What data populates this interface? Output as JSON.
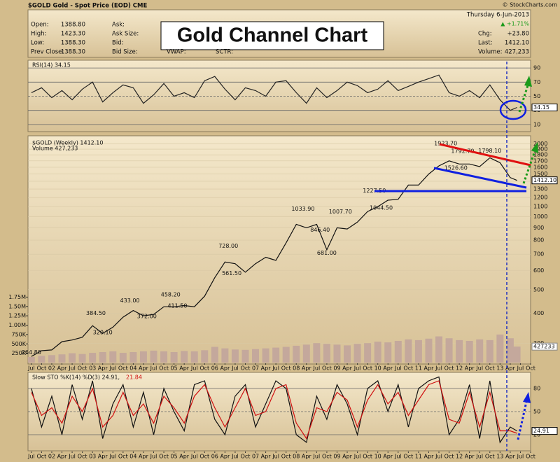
{
  "header": {
    "symbol_line": "$GOLD Gold - Spot Price (EOD) CME",
    "credit": "© StockCharts.com",
    "date": "Thursday 6-Jun-2013",
    "change_pct": "▲ +1.71%",
    "left_fields": [
      {
        "label": "Open:",
        "value": "1388.80"
      },
      {
        "label": "High:",
        "value": "1423.30"
      },
      {
        "label": "Low:",
        "value": "1388.30"
      },
      {
        "label": "Prev Close:",
        "value": "1388.30"
      }
    ],
    "mid_fields": [
      "Ask:",
      "Ask Size:",
      "Bid:",
      "Bid Size:"
    ],
    "extra_fields": [
      "VWAP:",
      "SCTR:"
    ],
    "right_fields": [
      {
        "label": "Chg:",
        "value": "+23.80"
      },
      {
        "label": "Last:",
        "value": "1412.10"
      },
      {
        "label": "Volume:",
        "value": "427,233"
      }
    ],
    "banner": "Gold Channel Chart"
  },
  "chart_data": [
    {
      "type": "line",
      "title": "RSI(14) 34.15",
      "ylim": [
        0,
        100
      ],
      "yticks": [
        10,
        30,
        50,
        70,
        90
      ],
      "last_value_label": "34.15",
      "series": [
        {
          "color": "#222222",
          "values": [
            55,
            62,
            48,
            58,
            45,
            60,
            70,
            42,
            55,
            66,
            62,
            40,
            52,
            68,
            50,
            55,
            48,
            72,
            78,
            60,
            45,
            62,
            58,
            50,
            70,
            72,
            55,
            40,
            62,
            48,
            58,
            70,
            65,
            55,
            60,
            72,
            58,
            64,
            70,
            75,
            80,
            55,
            50,
            58,
            48,
            66,
            45,
            30,
            34.15
          ]
        }
      ]
    },
    {
      "type": "line",
      "title": "$GOLD (Weekly) 1412.10",
      "subtitle": "Volume 427,233",
      "log_scale": true,
      "x": [
        "2001-07",
        "2001-10",
        "2002-01",
        "2002-04",
        "2002-07",
        "2002-10",
        "2003-01",
        "2003-04",
        "2003-07",
        "2003-10",
        "2004-01",
        "2004-04",
        "2004-07",
        "2004-10",
        "2005-01",
        "2005-04",
        "2005-07",
        "2005-10",
        "2006-01",
        "2006-04",
        "2006-07",
        "2006-10",
        "2007-01",
        "2007-04",
        "2007-07",
        "2007-10",
        "2008-01",
        "2008-04",
        "2008-07",
        "2008-10",
        "2009-01",
        "2009-04",
        "2009-07",
        "2009-10",
        "2010-01",
        "2010-04",
        "2010-07",
        "2010-10",
        "2011-01",
        "2011-04",
        "2011-07",
        "2011-10",
        "2012-01",
        "2012-04",
        "2012-07",
        "2012-10",
        "2013-01",
        "2013-04",
        "2013-06"
      ],
      "xlim": [
        "2001-06",
        "2013-10"
      ],
      "xticks": [
        {
          "value": "2001-07",
          "label": "Jul"
        },
        {
          "value": "2001-10",
          "label": "Oct"
        },
        {
          "value": "2002-01",
          "label": "02"
        },
        {
          "value": "2002-04",
          "label": "Apr"
        },
        {
          "value": "2002-07",
          "label": "Jul"
        },
        {
          "value": "2002-10",
          "label": "Oct"
        },
        {
          "value": "2003-01",
          "label": "03"
        },
        {
          "value": "2003-04",
          "label": "Apr"
        },
        {
          "value": "2003-07",
          "label": "Jul"
        },
        {
          "value": "2003-10",
          "label": "Oct"
        },
        {
          "value": "2004-01",
          "label": "04"
        },
        {
          "value": "2004-04",
          "label": "Apr"
        },
        {
          "value": "2004-07",
          "label": "Jul"
        },
        {
          "value": "2004-10",
          "label": "Oct"
        },
        {
          "value": "2005-01",
          "label": "05"
        },
        {
          "value": "2005-04",
          "label": "Apr"
        },
        {
          "value": "2005-07",
          "label": "Jul"
        },
        {
          "value": "2005-10",
          "label": "Oct"
        },
        {
          "value": "2006-01",
          "label": "06"
        },
        {
          "value": "2006-04",
          "label": "Apr"
        },
        {
          "value": "2006-07",
          "label": "Jul"
        },
        {
          "value": "2006-10",
          "label": "Oct"
        },
        {
          "value": "2007-01",
          "label": "07"
        },
        {
          "value": "2007-04",
          "label": "Apr"
        },
        {
          "value": "2007-07",
          "label": "Jul"
        },
        {
          "value": "2007-10",
          "label": "Oct"
        },
        {
          "value": "2008-01",
          "label": "08"
        },
        {
          "value": "2008-04",
          "label": "Apr"
        },
        {
          "value": "2008-07",
          "label": "Jul"
        },
        {
          "value": "2008-10",
          "label": "Oct"
        },
        {
          "value": "2009-01",
          "label": "09"
        },
        {
          "value": "2009-04",
          "label": "Apr"
        },
        {
          "value": "2009-07",
          "label": "Jul"
        },
        {
          "value": "2009-10",
          "label": "Oct"
        },
        {
          "value": "2010-01",
          "label": "10"
        },
        {
          "value": "2010-04",
          "label": "Apr"
        },
        {
          "value": "2010-07",
          "label": "Jul"
        },
        {
          "value": "2010-10",
          "label": "Oct"
        },
        {
          "value": "2011-01",
          "label": "11"
        },
        {
          "value": "2011-04",
          "label": "Apr"
        },
        {
          "value": "2011-07",
          "label": "Jul"
        },
        {
          "value": "2011-10",
          "label": "Oct"
        },
        {
          "value": "2012-01",
          "label": "12"
        },
        {
          "value": "2012-04",
          "label": "Apr"
        },
        {
          "value": "2012-07",
          "label": "Jul"
        },
        {
          "value": "2012-10",
          "label": "Oct"
        },
        {
          "value": "2013-01",
          "label": "13"
        },
        {
          "value": "2013-04",
          "label": "Apr"
        },
        {
          "value": "2013-07",
          "label": "Jul"
        },
        {
          "value": "2013-10",
          "label": "Oct"
        }
      ],
      "ylim": [
        250,
        2100
      ],
      "yticks": [
        300,
        400,
        500,
        600,
        700,
        800,
        900,
        1000,
        1100,
        1200,
        1300,
        1400,
        1500,
        1600,
        1700,
        1800,
        1900,
        2000
      ],
      "y2lim": [
        0,
        1870000
      ],
      "y2ticks": [
        {
          "value": 250000,
          "label": "250K"
        },
        {
          "value": 500000,
          "label": "500K"
        },
        {
          "value": 750000,
          "label": "750K"
        },
        {
          "value": 1000000,
          "label": "1.00M"
        },
        {
          "value": 1250000,
          "label": "1.25M"
        },
        {
          "value": 1500000,
          "label": "1.50M"
        },
        {
          "value": 1750000,
          "label": "1.75M"
        }
      ],
      "last_value_label": "1412.10",
      "last_volume_label": "427233",
      "series": [
        {
          "color": "#111111",
          "values": [
            265,
            280,
            282,
            305,
            310,
            318,
            355,
            330,
            350,
            385,
            410,
            390,
            395,
            425,
            425,
            430,
            425,
            470,
            560,
            650,
            640,
            590,
            640,
            680,
            660,
            780,
            930,
            900,
            930,
            730,
            900,
            890,
            950,
            1050,
            1100,
            1170,
            1180,
            1350,
            1350,
            1500,
            1620,
            1700,
            1650,
            1650,
            1610,
            1750,
            1670,
            1450,
            1412.1
          ]
        },
        {
          "type": "bar",
          "axis": "y2",
          "color": "#c4a89c",
          "values": [
            150000,
            180000,
            200000,
            220000,
            250000,
            230000,
            260000,
            280000,
            300000,
            260000,
            280000,
            300000,
            320000,
            300000,
            280000,
            310000,
            300000,
            330000,
            420000,
            380000,
            350000,
            340000,
            360000,
            380000,
            400000,
            420000,
            450000,
            480000,
            520000,
            500000,
            480000,
            460000,
            500000,
            520000,
            560000,
            540000,
            580000,
            620000,
            600000,
            640000,
            700000,
            650000,
            600000,
            580000,
            620000,
            600000,
            750000,
            650000,
            427233
          ]
        }
      ],
      "annotations": [
        {
          "x": "2001-07",
          "value": 264.8,
          "label": "264.80"
        },
        {
          "x": "2003-02",
          "value": 384.5,
          "label": "384.50"
        },
        {
          "x": "2003-04",
          "value": 320.1,
          "label": "320.10"
        },
        {
          "x": "2003-12",
          "value": 433,
          "label": "433.00"
        },
        {
          "x": "2004-05",
          "value": 372,
          "label": "372.00"
        },
        {
          "x": "2004-12",
          "value": 458.2,
          "label": "458.20"
        },
        {
          "x": "2005-02",
          "value": 411.5,
          "label": "411.50"
        },
        {
          "x": "2006-05",
          "value": 728,
          "label": "728.00"
        },
        {
          "x": "2006-06",
          "value": 561.5,
          "label": "561.50"
        },
        {
          "x": "2008-03",
          "value": 1033.9,
          "label": "1033.90"
        },
        {
          "x": "2008-08",
          "value": 846.4,
          "label": "846.40"
        },
        {
          "x": "2008-10",
          "value": 681,
          "label": "681.00"
        },
        {
          "x": "2009-02",
          "value": 1007.7,
          "label": "1007.70"
        },
        {
          "x": "2010-02",
          "value": 1044.5,
          "label": "1044.50"
        },
        {
          "x": "2009-12",
          "value": 1227.5,
          "label": "1227.50"
        },
        {
          "x": "2011-09",
          "value": 1923.7,
          "label": "1923.70"
        },
        {
          "x": "2011-12",
          "value": 1526.6,
          "label": "1526.60"
        },
        {
          "x": "2012-02",
          "value": 1792.7,
          "label": "1792.70"
        },
        {
          "x": "2012-10",
          "value": 1798.1,
          "label": "1798.10"
        }
      ]
    },
    {
      "type": "line",
      "title": "Slow STO %K(14) %D(3) 24.91,",
      "title_d": "21.84",
      "ylim": [
        0,
        100
      ],
      "yticks": [
        20,
        50,
        80
      ],
      "last_value_label": "24.91",
      "series": [
        {
          "color": "#111111",
          "values": [
            80,
            30,
            70,
            20,
            85,
            40,
            90,
            15,
            60,
            85,
            30,
            75,
            20,
            80,
            50,
            25,
            85,
            90,
            40,
            20,
            70,
            85,
            30,
            60,
            90,
            80,
            20,
            10,
            70,
            40,
            85,
            60,
            20,
            80,
            90,
            50,
            85,
            30,
            80,
            90,
            95,
            20,
            40,
            85,
            15,
            90,
            10,
            30,
            24.91
          ]
        },
        {
          "color": "#d01010",
          "values": [
            75,
            45,
            55,
            35,
            70,
            50,
            80,
            30,
            45,
            75,
            45,
            60,
            35,
            70,
            55,
            35,
            70,
            85,
            55,
            30,
            55,
            80,
            45,
            50,
            80,
            85,
            35,
            15,
            55,
            50,
            75,
            65,
            30,
            65,
            85,
            60,
            75,
            45,
            65,
            85,
            90,
            40,
            35,
            75,
            30,
            75,
            25,
            25,
            21.84
          ]
        }
      ]
    }
  ]
}
